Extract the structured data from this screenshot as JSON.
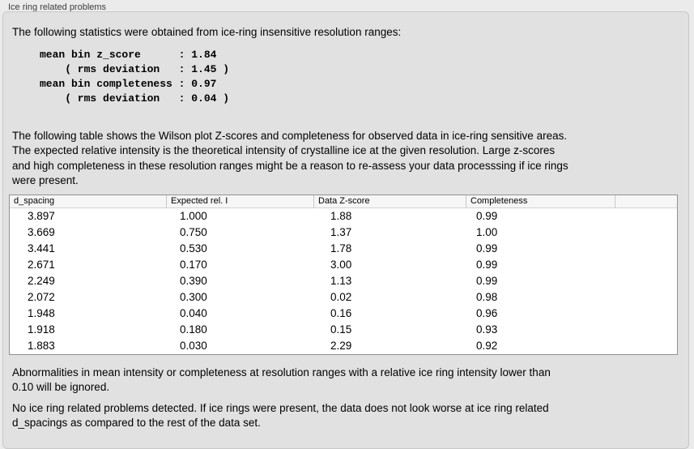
{
  "panel": {
    "title": "Ice ring related problems",
    "intro": "The following statistics were obtained from ice-ring insensitive resolution ranges:",
    "stats_block": "mean bin z_score      : 1.84\n    ( rms deviation   : 1.45 )\nmean bin completeness : 0.97\n    ( rms deviation   : 0.04 )",
    "stats": {
      "mean_bin_z_score": "1.84",
      "z_score_rms_deviation": "1.45",
      "mean_bin_completeness": "0.97",
      "completeness_rms_deviation": "0.04"
    },
    "table_description": "The following table shows the Wilson plot Z-scores and completeness for observed data in ice-ring sensitive areas.\nThe expected relative intensity is the theoretical intensity of crystalline ice at the given resolution. Large z-scores\nand high completeness in these resolution ranges might be a reason to re-assess your data processsing if ice rings\nwere present.",
    "note_ignore": "Abnormalities in mean intensity or completeness at resolution ranges with a relative ice ring intensity lower than\n0.10 will be ignored.",
    "conclusion": "No ice ring related problems detected. If ice rings were present, the data does not look worse at ice ring related\nd_spacings as compared to the rest of the data set."
  },
  "table": {
    "columns": [
      "d_spacing",
      "Expected rel. I",
      "Data Z-score",
      "Completeness",
      ""
    ],
    "rows": [
      [
        "3.897",
        "1.000",
        "1.88",
        "0.99",
        ""
      ],
      [
        "3.669",
        "0.750",
        "1.37",
        "1.00",
        ""
      ],
      [
        "3.441",
        "0.530",
        "1.78",
        "0.99",
        ""
      ],
      [
        "2.671",
        "0.170",
        "3.00",
        "0.99",
        ""
      ],
      [
        "2.249",
        "0.390",
        "1.13",
        "0.99",
        ""
      ],
      [
        "2.072",
        "0.300",
        "0.02",
        "0.98",
        ""
      ],
      [
        "1.948",
        "0.040",
        "0.16",
        "0.96",
        ""
      ],
      [
        "1.918",
        "0.180",
        "0.15",
        "0.93",
        ""
      ],
      [
        "1.883",
        "0.030",
        "2.29",
        "0.92",
        ""
      ]
    ]
  },
  "colors": {
    "page_bg": "#ebebeb",
    "panel_bg": "#e1e1e1",
    "panel_border": "#c8c8c8",
    "table_bg": "#ffffff",
    "table_border": "#919191",
    "table_header_bg": "#f6f6f6",
    "text": "#000000"
  }
}
